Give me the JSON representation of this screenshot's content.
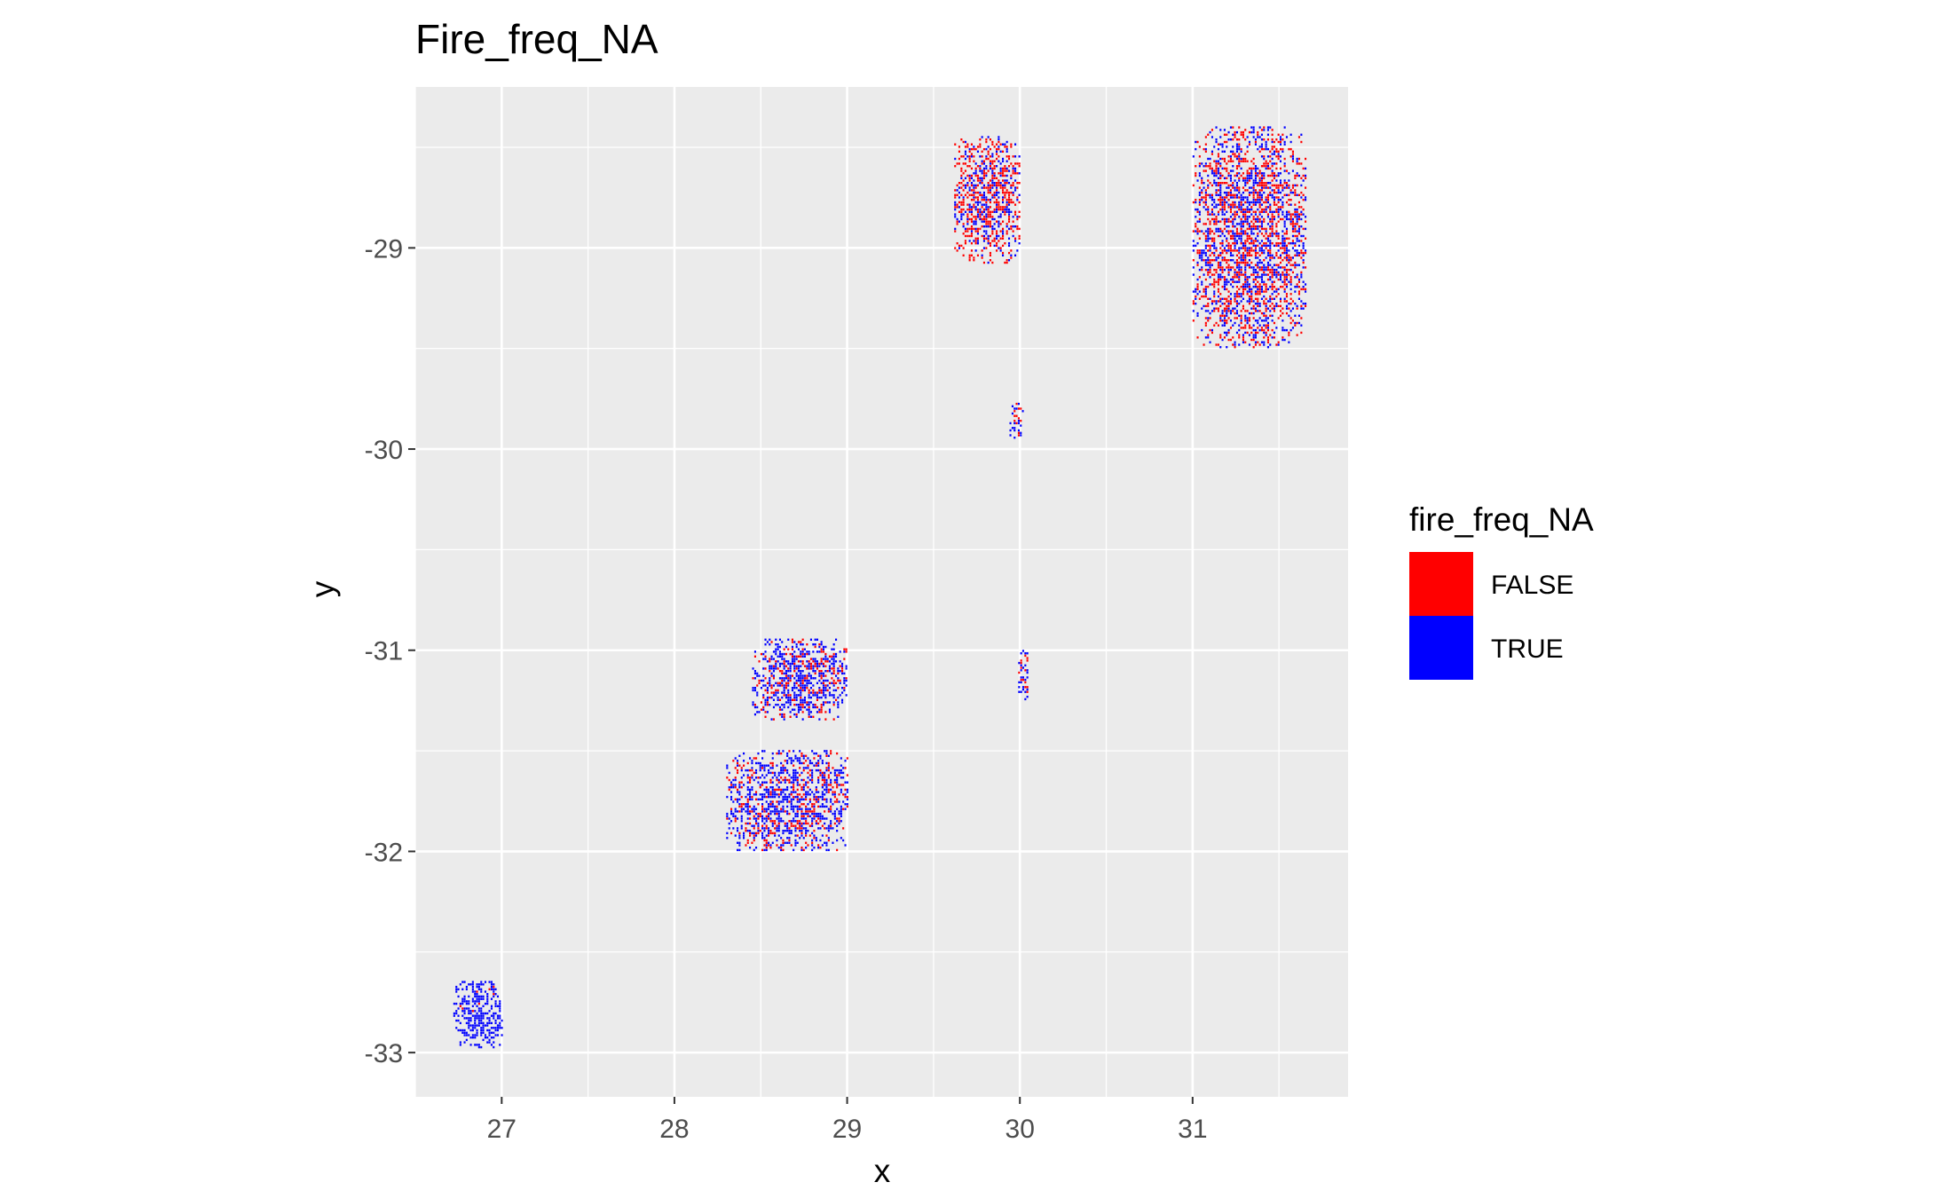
{
  "chart_data": {
    "type": "heatmap",
    "title": "Fire_freq_NA",
    "xlabel": "x",
    "ylabel": "y",
    "xlim": [
      26.5,
      31.9
    ],
    "ylim": [
      -33.22,
      -28.2
    ],
    "x_ticks": [
      27,
      28,
      29,
      30,
      31
    ],
    "y_ticks": [
      -29,
      -30,
      -31,
      -32,
      -33
    ],
    "x_tick_labels": [
      "27",
      "28",
      "29",
      "30",
      "31"
    ],
    "y_tick_labels": [
      "-29",
      "-30",
      "-31",
      "-32",
      "-33"
    ],
    "grid": true,
    "legend": {
      "title": "fire_freq_NA",
      "position": "right",
      "entries": [
        {
          "label": "FALSE",
          "color": "#ff0000"
        },
        {
          "label": "TRUE",
          "color": "#0000ff"
        }
      ]
    },
    "colors": {
      "FALSE": "#ff0000",
      "TRUE": "#0000ff",
      "panel": "#ebebeb",
      "grid": "#ffffff"
    },
    "clusters": [
      {
        "xmin": 26.72,
        "xmax": 27.0,
        "ymin": -32.98,
        "ymax": -32.65,
        "false_share": 0.03
      },
      {
        "xmin": 28.3,
        "xmax": 29.0,
        "ymin": -32.0,
        "ymax": -31.5,
        "false_share": 0.35
      },
      {
        "xmin": 28.45,
        "xmax": 29.0,
        "ymin": -31.35,
        "ymax": -30.95,
        "false_share": 0.3
      },
      {
        "xmin": 29.62,
        "xmax": 30.0,
        "ymin": -29.08,
        "ymax": -28.45,
        "false_share": 0.6
      },
      {
        "xmin": 29.94,
        "xmax": 30.02,
        "ymin": -29.95,
        "ymax": -29.78,
        "false_share": 0.4
      },
      {
        "xmin": 29.99,
        "xmax": 30.05,
        "ymin": -31.25,
        "ymax": -31.0,
        "false_share": 0.3
      },
      {
        "xmin": 31.0,
        "xmax": 31.65,
        "ymin": -29.5,
        "ymax": -28.4,
        "false_share": 0.5
      }
    ]
  }
}
